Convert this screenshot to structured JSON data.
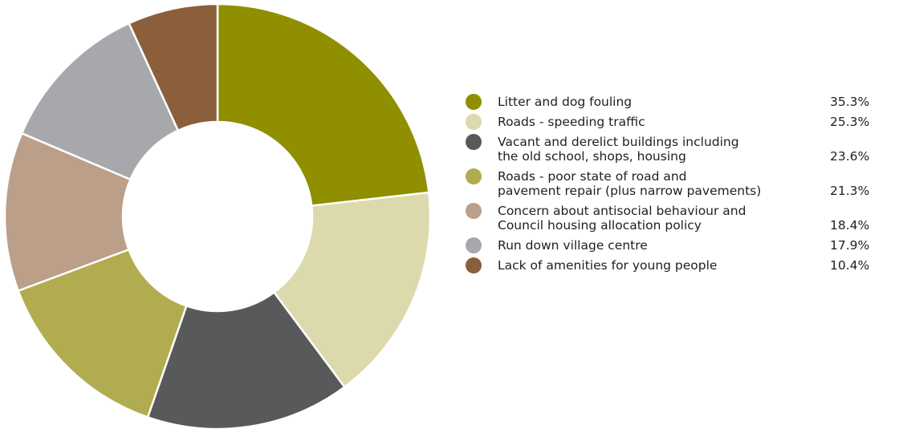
{
  "chart_data": {
    "type": "pie",
    "style": "donut",
    "title": "",
    "categories": [
      "Litter and dog fouling",
      "Roads - speeding traffic",
      "Vacant and derelict buildings including\nthe old school, shops, housing",
      "Roads - poor state of road and\npavement repair (plus narrow pavements)",
      "Concern about antisocial behaviour and\nCouncil housing allocation policy",
      "Run down village centre",
      "Lack of amenities for young people"
    ],
    "values": [
      35.3,
      25.3,
      23.6,
      21.3,
      18.4,
      17.9,
      10.4
    ],
    "value_labels": [
      "35.3%",
      "25.3%",
      "23.6%",
      "21.3%",
      "18.4%",
      "17.9%",
      "10.4%"
    ],
    "colors": [
      "#8f8f00",
      "#dcd9ad",
      "#58595b",
      "#b1ac4f",
      "#bc9f89",
      "#a7a8ab",
      "#8b5e3c"
    ],
    "legend_position": "right"
  }
}
